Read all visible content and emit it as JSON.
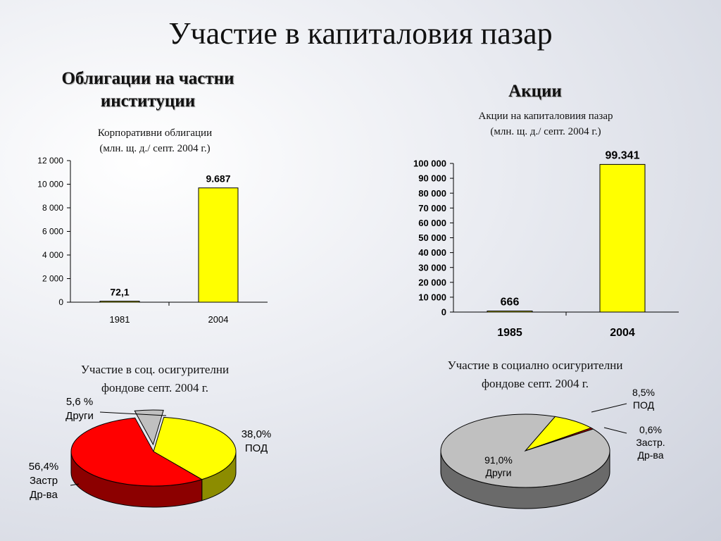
{
  "slide": {
    "title": "Участие в капиталовия пазар"
  },
  "left_section": {
    "heading_line1": "Облигации на частни",
    "heading_line2": "институции",
    "chart_title_line1": "Корпоративни облигации",
    "chart_title_line2": "(млн. щ. д./ септ. 2004 г.)"
  },
  "right_section": {
    "heading": "Акции",
    "chart_title_line1": "Акции на капиталовиия пазар",
    "chart_title_line2": "(млн. щ. д./ септ. 2004 г.)"
  },
  "pie_left_title": {
    "line1": "Участие в соц. осигурителни",
    "line2": "фондове  септ. 2004 г."
  },
  "pie_right_title": {
    "line1": "Участие в социално осигурителни",
    "line2": "фондове септ. 2004 г."
  },
  "colors": {
    "yellow": "#ffff00",
    "red": "#ff0000",
    "gray": "#c0c0c0",
    "dark_red": "#cc0000"
  },
  "chart_data": [
    {
      "type": "bar",
      "categories": [
        "1981",
        "2004"
      ],
      "values": [
        72.1,
        9687
      ],
      "value_labels": [
        "72,1",
        "9.687"
      ],
      "ylim": [
        0,
        12000
      ],
      "yticks": [
        0,
        2000,
        4000,
        6000,
        8000,
        10000,
        12000
      ],
      "ytick_labels": [
        "0",
        "2 000",
        "4 000",
        "6 000",
        "8 000",
        "10 000",
        "12 000"
      ],
      "bar_color": "#ffff00",
      "grid": false
    },
    {
      "type": "bar",
      "categories": [
        "1985",
        "2004"
      ],
      "values": [
        666,
        99341
      ],
      "value_labels": [
        "666",
        "99.341"
      ],
      "ylim": [
        0,
        100000
      ],
      "yticks": [
        0,
        10000,
        20000,
        30000,
        40000,
        50000,
        60000,
        70000,
        80000,
        90000,
        100000
      ],
      "ytick_labels": [
        "0",
        "10 000",
        "20 000",
        "30 000",
        "40 000",
        "50 000",
        "60 000",
        "70 000",
        "80 000",
        "90 000",
        "100 000"
      ],
      "bar_color": "#ffff00",
      "grid": false
    },
    {
      "type": "pie",
      "slices": [
        {
          "label": "ПОД",
          "value": 38.0,
          "value_label": "38,0%",
          "color": "#ffff00"
        },
        {
          "label": "Застр\nДр-ва",
          "value": 56.4,
          "value_label": "56,4%",
          "color": "#ff0000"
        },
        {
          "label": "Други",
          "value": 5.6,
          "value_label": "5,6 %",
          "color": "#c0c0c0"
        }
      ]
    },
    {
      "type": "pie",
      "slices": [
        {
          "label": "ПОД",
          "value": 8.5,
          "value_label": "8,5%",
          "color": "#ffff00"
        },
        {
          "label": "Застр.\nДр-ва",
          "value": 0.6,
          "value_label": "0,6%",
          "color": "#cc0000"
        },
        {
          "label": "Други",
          "value": 91.0,
          "value_label": "91,0%",
          "color": "#c0c0c0"
        }
      ]
    }
  ]
}
